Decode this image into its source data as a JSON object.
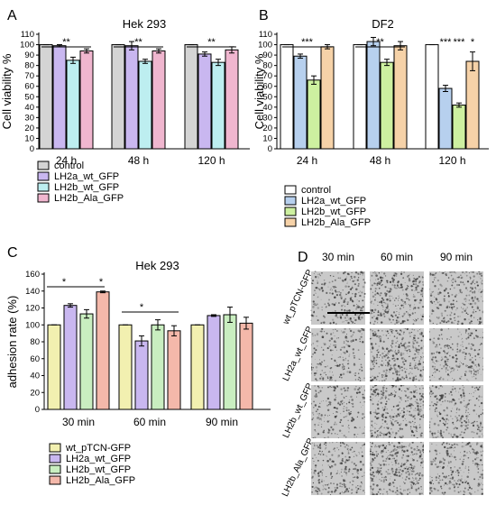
{
  "panel_letters": [
    "A",
    "B",
    "C",
    "D"
  ],
  "colors": {
    "control": "#d4d4d4",
    "A_LH2a": "#c9b7f0",
    "A_LH2b_wt": "#bdeef0",
    "A_LH2b_Ala": "#f0b6cf",
    "B_control": "#ffffff",
    "B_LH2a": "#b7d0ee",
    "B_LH2b_wt": "#cdf0a0",
    "B_LH2b_Ala": "#f6d2a8",
    "C_pTCN": "#f2f0b0",
    "C_LH2a": "#c9b7f0",
    "C_LH2b_wt": "#c9eec0",
    "C_LH2b_Ala": "#f4b8aa",
    "micro_bg": "#c9c9c9",
    "micro_cells": "#333333"
  },
  "chart_data": [
    {
      "panel": "A",
      "type": "bar",
      "title": "Hek 293",
      "ylabel": "Cell viability %",
      "xlabel": "",
      "ylim": [
        0,
        110
      ],
      "yticks": [
        0,
        10,
        20,
        30,
        40,
        50,
        60,
        70,
        80,
        90,
        100,
        110
      ],
      "categories": [
        "24 h",
        "48 h",
        "120 h"
      ],
      "series": [
        {
          "name": "control",
          "values": [
            100,
            100,
            100
          ],
          "errors": [
            0,
            0,
            0
          ]
        },
        {
          "name": "LH2a_wt_GFP",
          "values": [
            99,
            99,
            91
          ],
          "errors": [
            1,
            4,
            2
          ]
        },
        {
          "name": "LH2b_wt_GFP",
          "values": [
            85,
            84,
            83
          ],
          "errors": [
            3,
            2,
            3
          ]
        },
        {
          "name": "LH2b_Ala_GFP",
          "values": [
            94,
            94,
            95
          ],
          "errors": [
            2,
            2,
            3
          ]
        }
      ],
      "significance": [
        {
          "group": "24 h",
          "label": "**"
        },
        {
          "group": "48 h",
          "label": "**"
        },
        {
          "group": "120 h",
          "label": "**"
        }
      ],
      "legend": "bottom"
    },
    {
      "panel": "B",
      "type": "bar",
      "title": "DF2",
      "ylabel": "Cell viability %",
      "xlabel": "",
      "ylim": [
        0,
        110
      ],
      "yticks": [
        0,
        10,
        20,
        30,
        40,
        50,
        60,
        70,
        80,
        90,
        100,
        110
      ],
      "categories": [
        "24 h",
        "48 h",
        "120 h"
      ],
      "series": [
        {
          "name": "control",
          "values": [
            100,
            100,
            100
          ],
          "errors": [
            0,
            0,
            0
          ]
        },
        {
          "name": "LH2a_wt_GFP",
          "values": [
            89,
            103,
            58
          ],
          "errors": [
            2,
            4,
            3
          ]
        },
        {
          "name": "LH2b_wt_GFP",
          "values": [
            66,
            83,
            42
          ],
          "errors": [
            4,
            3,
            2
          ]
        },
        {
          "name": "LH2b_Ala_GFP",
          "values": [
            98,
            99,
            84
          ],
          "errors": [
            2,
            4,
            9
          ]
        }
      ],
      "significance": [
        {
          "group": "24 h",
          "label": "***"
        },
        {
          "group": "48 h",
          "label": "**"
        },
        {
          "group": "120 h",
          "labels": [
            "***",
            "***",
            "*"
          ]
        }
      ],
      "legend": "bottom"
    },
    {
      "panel": "C",
      "type": "bar",
      "title": "Hek 293",
      "ylabel": "adhesion rate (%)",
      "xlabel": "",
      "ylim": [
        0,
        160
      ],
      "yticks": [
        0,
        20,
        40,
        60,
        80,
        100,
        120,
        140,
        160
      ],
      "categories": [
        "30 min",
        "60 min",
        "90 min"
      ],
      "series": [
        {
          "name": "wt_pTCN-GFP",
          "values": [
            100,
            100,
            100
          ],
          "errors": [
            0,
            0,
            0
          ]
        },
        {
          "name": "LH2a_wt_GFP",
          "values": [
            123,
            81,
            111
          ],
          "errors": [
            2,
            6,
            1
          ]
        },
        {
          "name": "LH2b_wt_GFP",
          "values": [
            113,
            100,
            112
          ],
          "errors": [
            5,
            6,
            9
          ]
        },
        {
          "name": "LH2b_Ala_GFP",
          "values": [
            139,
            93,
            102
          ],
          "errors": [
            1,
            6,
            7
          ]
        }
      ],
      "significance": [
        {
          "group": "30 min",
          "label": "*"
        },
        {
          "group": "30 min",
          "label": "*"
        },
        {
          "group": "60 min",
          "label": "*"
        }
      ],
      "legend": "bottom"
    }
  ],
  "panel_d": {
    "columns": [
      "30 min",
      "60 min",
      "90 min"
    ],
    "rows": [
      "wt_pTCN-GFP",
      "LH2a_wt_GFP",
      "LH2b_wt_GFP",
      "LH2b_Ala_GFP"
    ],
    "density": [
      [
        1.0,
        1.2,
        1.05
      ],
      [
        0.8,
        1.35,
        0.9
      ],
      [
        0.8,
        1.3,
        0.95
      ],
      [
        1.0,
        1.4,
        1.0
      ]
    ]
  }
}
